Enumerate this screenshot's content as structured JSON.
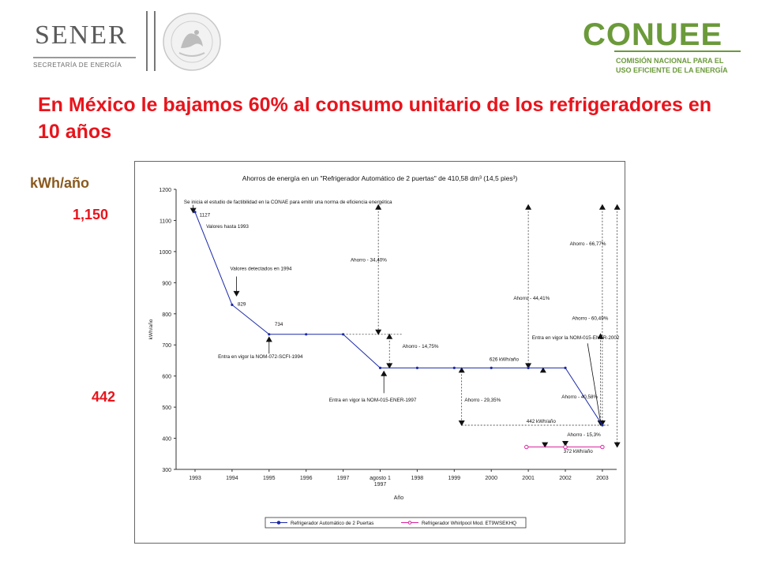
{
  "header": {
    "sener_logo": {
      "word": "SENER",
      "subtitle": "SECRETARÍA DE ENERGÍA"
    },
    "seal_logo": {
      "text": "ESTADOS UNIDOS MEXICANOS"
    },
    "conuee_logo": {
      "word": "CONUEE",
      "line1": "COMISIÓN NACIONAL PARA EL",
      "line2": "USO EFICIENTE DE LA ENERGÍA"
    }
  },
  "slide": {
    "title": "En México le bajamos 60% al consumo unitario de los refrigeradores en 10 años",
    "unit_label": "kWh/año",
    "value_top": "1,150",
    "value_bottom": "442",
    "colors": {
      "title": "#e8141c",
      "unit_label": "#8a5a1e",
      "series1": "#1c2aa8",
      "series2": "#d81e9e"
    }
  },
  "chart_data": {
    "type": "line",
    "title": "Ahorros de energía en un \"Refrigerador Automático de 2 puertas\" de 410,58 dm³ (14,5 pies³)",
    "xlabel": "Año",
    "ylabel": "kWh/año",
    "ylim": [
      300,
      1200
    ],
    "yticks": [
      300,
      400,
      500,
      600,
      700,
      800,
      900,
      1000,
      1100,
      1200
    ],
    "xticks": [
      "1993",
      "1994",
      "1995",
      "1996",
      "1997",
      "agosto 1\n1997",
      "1998",
      "1999",
      "2000",
      "2001",
      "2002",
      "2003"
    ],
    "grid": false,
    "legend_position": "bottom",
    "series": [
      {
        "name": "Refrigerador Automático de 2 Puertas",
        "color": "#1c2aa8",
        "points": [
          [
            0,
            1127
          ],
          [
            1,
            829
          ],
          [
            2,
            734
          ],
          [
            3,
            734
          ],
          [
            4,
            734
          ],
          [
            5,
            626
          ],
          [
            6,
            626
          ],
          [
            7,
            626
          ],
          [
            8,
            626
          ],
          [
            9,
            626
          ],
          [
            10,
            626
          ],
          [
            11,
            442
          ]
        ]
      },
      {
        "name": "Refrigerador Whirlpool Mod. ET9WSEKHQ",
        "color": "#d81e9e",
        "points": [
          [
            8.95,
            372
          ],
          [
            10.0,
            372
          ],
          [
            11.0,
            372
          ]
        ]
      }
    ],
    "annotations": [
      {
        "text": "Se inicia el estudio de factibilidad en la CONAE para emitir una norma de eficiencia energética",
        "x": -0.3,
        "y": 1155,
        "anchor": "start"
      },
      {
        "text": "1127",
        "x": 0.12,
        "y": 1112,
        "anchor": "start"
      },
      {
        "text": "Valores hasta 1993",
        "x": 0.3,
        "y": 1076,
        "anchor": "start"
      },
      {
        "text": "Valores detectados en 1994",
        "x": 0.95,
        "y": 940,
        "anchor": "start"
      },
      {
        "text": "829",
        "x": 1.15,
        "y": 826,
        "anchor": "start"
      },
      {
        "text": "734",
        "x": 2.15,
        "y": 762,
        "anchor": "start"
      },
      {
        "text": "Entra en vigor la NOM-072-SCFI-1994",
        "x": 0.62,
        "y": 658,
        "anchor": "start"
      },
      {
        "text": "Ahorro - 34,40%",
        "x": 4.2,
        "y": 968,
        "anchor": "start"
      },
      {
        "text": "Ahorro - 14,75%",
        "x": 5.6,
        "y": 690,
        "anchor": "start"
      },
      {
        "text": "Entra en vigor la NOM-015-ENER-1997",
        "x": 3.62,
        "y": 518,
        "anchor": "start"
      },
      {
        "text": "626 kWh/año",
        "x": 7.95,
        "y": 648,
        "anchor": "start"
      },
      {
        "text": "Ahorro - 29,35%",
        "x": 7.28,
        "y": 518,
        "anchor": "start"
      },
      {
        "text": "Ahorro - 44,41%",
        "x": 8.6,
        "y": 845,
        "anchor": "start"
      },
      {
        "text": "Ahorro - 60,49%",
        "x": 10.18,
        "y": 780,
        "anchor": "start"
      },
      {
        "text": "Entra en vigor la NOM-015-ENER-2002",
        "x": 9.1,
        "y": 718,
        "anchor": "start"
      },
      {
        "text": "Ahorro - 40,58%",
        "x": 9.9,
        "y": 528,
        "anchor": "start"
      },
      {
        "text": "Ahorro - 66,77%",
        "x": 10.12,
        "y": 1020,
        "anchor": "start"
      },
      {
        "text": "442 kWh/año",
        "x": 8.95,
        "y": 450,
        "anchor": "start"
      },
      {
        "text": "Ahorro - 15,3%",
        "x": 10.05,
        "y": 406,
        "anchor": "start"
      },
      {
        "text": "372 kWh/año",
        "x": 9.95,
        "y": 353,
        "anchor": "start"
      }
    ]
  }
}
